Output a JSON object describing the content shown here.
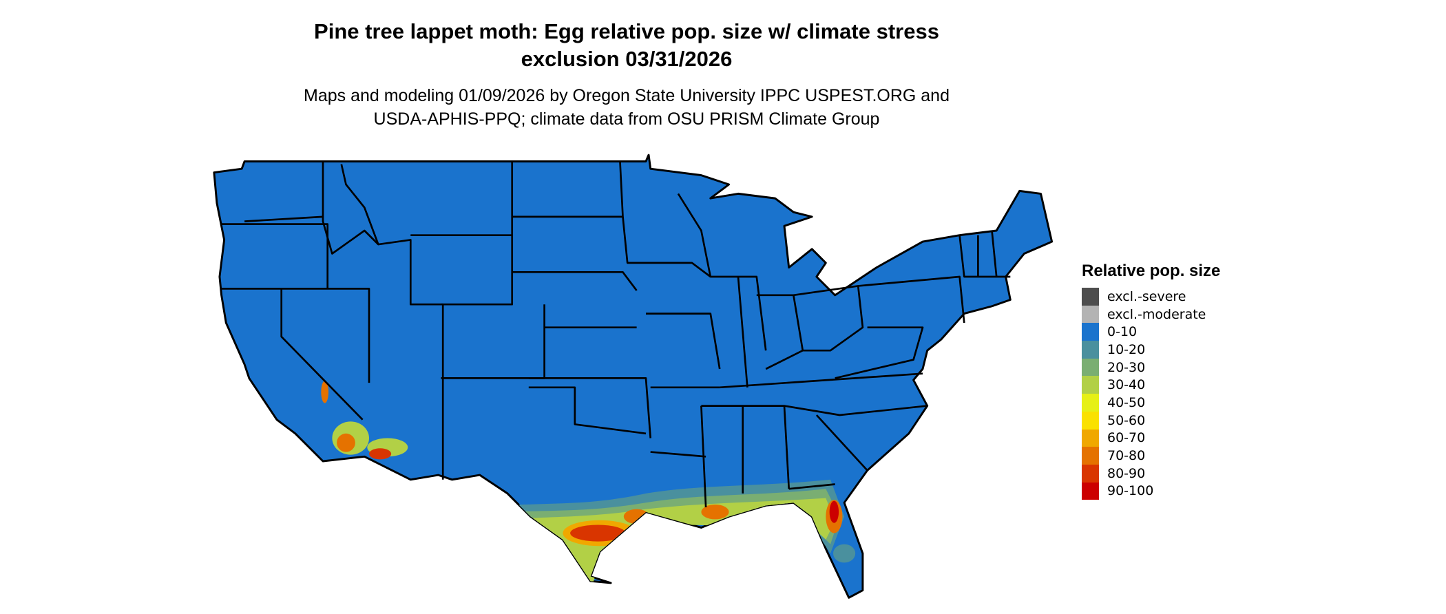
{
  "title": "Pine tree lappet moth: Egg relative pop. size w/ climate stress exclusion 03/31/2026",
  "title_lines": [
    "Pine tree lappet moth: Egg relative pop. size w/ climate stress",
    "exclusion 03/31/2026"
  ],
  "subtitle_lines": [
    "Maps and modeling 01/09/2026 by Oregon State University IPPC USPEST.ORG and",
    "USDA-APHIS-PPQ; climate data from OSU PRISM Climate Group"
  ],
  "legend": {
    "title": "Relative pop. size",
    "items": [
      {
        "label": "excl.-severe",
        "color": "#4d4d4d"
      },
      {
        "label": "excl.-moderate",
        "color": "#b3b3b3"
      },
      {
        "label": "0-10",
        "color": "#1a73cd"
      },
      {
        "label": "10-20",
        "color": "#4a909e"
      },
      {
        "label": "20-30",
        "color": "#7aae72"
      },
      {
        "label": "30-40",
        "color": "#b2d046"
      },
      {
        "label": "40-50",
        "color": "#e6f016"
      },
      {
        "label": "50-60",
        "color": "#fae100"
      },
      {
        "label": "60-70",
        "color": "#f0a800"
      },
      {
        "label": "70-80",
        "color": "#e57200"
      },
      {
        "label": "80-90",
        "color": "#d93500"
      },
      {
        "label": "90-100",
        "color": "#cc0000"
      }
    ]
  },
  "map": {
    "region": "Contiguous United States",
    "base_color": "#1a73cd",
    "border_color": "#000000"
  }
}
